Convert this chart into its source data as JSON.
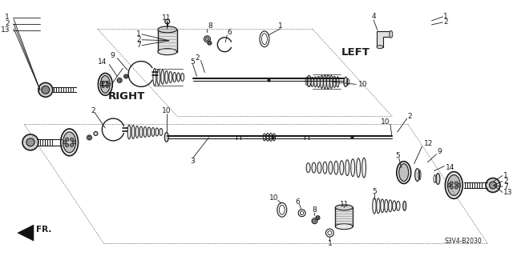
{
  "bg_color": "#ffffff",
  "line_color": "#1a1a1a",
  "text_color": "#1a1a1a",
  "label_left": "LEFT",
  "label_right": "RIGHT",
  "label_fr": "FR.",
  "part_code": "S3V4-B2030",
  "fig_width": 6.4,
  "fig_height": 3.2,
  "dpi": 100
}
